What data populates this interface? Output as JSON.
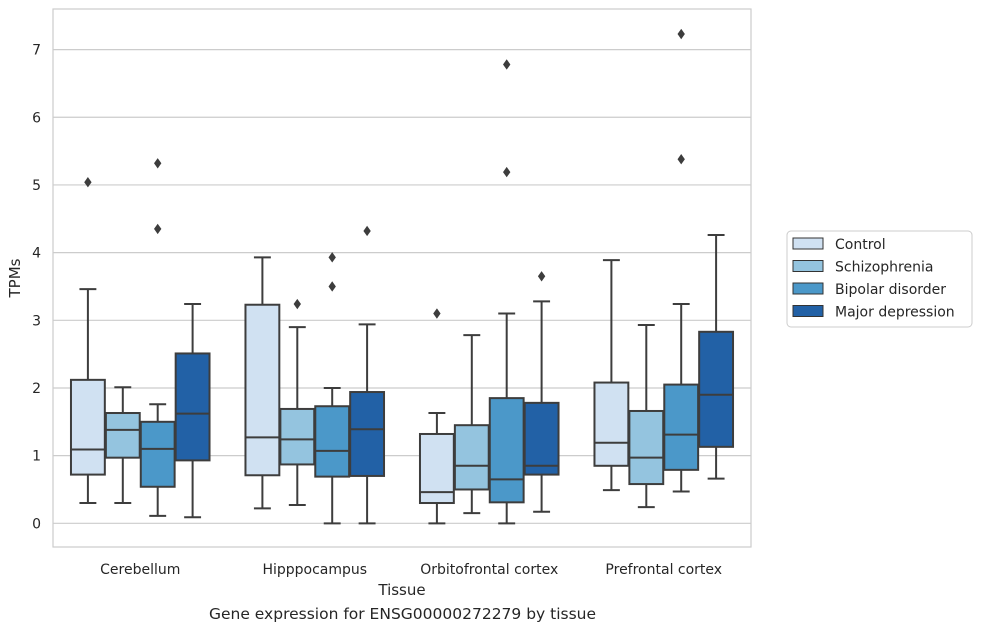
{
  "chart_data": {
    "type": "box",
    "xlabel": "Tissue",
    "ylabel": "TPMs",
    "ylim": [
      -0.35,
      7.6
    ],
    "yticks": [
      0,
      1,
      2,
      3,
      4,
      5,
      6,
      7
    ],
    "grid": true,
    "legend_position": "right",
    "categories": [
      "Cerebellum",
      "Hipppocampus",
      "Orbitofrontal cortex",
      "Prefrontal cortex"
    ],
    "series": [
      {
        "name": "Control",
        "color": "#d0e1f2",
        "boxes": [
          {
            "whislo": 0.3,
            "q1": 0.72,
            "med": 1.09,
            "q3": 2.12,
            "whishi": 3.46,
            "fliers": [
              5.04
            ]
          },
          {
            "whislo": 0.22,
            "q1": 0.71,
            "med": 1.27,
            "q3": 3.23,
            "whishi": 3.93,
            "fliers": []
          },
          {
            "whislo": 0.0,
            "q1": 0.3,
            "med": 0.46,
            "q3": 1.32,
            "whishi": 1.63,
            "fliers": [
              3.1
            ]
          },
          {
            "whislo": 0.49,
            "q1": 0.85,
            "med": 1.19,
            "q3": 2.08,
            "whishi": 3.89,
            "fliers": []
          }
        ]
      },
      {
        "name": "Schizophrenia",
        "color": "#94c4df",
        "boxes": [
          {
            "whislo": 0.3,
            "q1": 0.97,
            "med": 1.38,
            "q3": 1.63,
            "whishi": 2.01,
            "fliers": []
          },
          {
            "whislo": 0.27,
            "q1": 0.87,
            "med": 1.24,
            "q3": 1.69,
            "whishi": 2.9,
            "fliers": [
              3.24
            ]
          },
          {
            "whislo": 0.15,
            "q1": 0.5,
            "med": 0.85,
            "q3": 1.45,
            "whishi": 2.78,
            "fliers": []
          },
          {
            "whislo": 0.24,
            "q1": 0.58,
            "med": 0.97,
            "q3": 1.66,
            "whishi": 2.93,
            "fliers": []
          }
        ]
      },
      {
        "name": "Bipolar disorder",
        "color": "#4b98c9",
        "boxes": [
          {
            "whislo": 0.11,
            "q1": 0.54,
            "med": 1.1,
            "q3": 1.5,
            "whishi": 1.76,
            "fliers": [
              4.35,
              5.32
            ]
          },
          {
            "whislo": 0.0,
            "q1": 0.69,
            "med": 1.07,
            "q3": 1.73,
            "whishi": 2.0,
            "fliers": [
              3.5,
              3.93
            ]
          },
          {
            "whislo": 0.0,
            "q1": 0.31,
            "med": 0.65,
            "q3": 1.85,
            "whishi": 3.1,
            "fliers": [
              5.19,
              6.78
            ]
          },
          {
            "whislo": 0.47,
            "q1": 0.79,
            "med": 1.31,
            "q3": 2.05,
            "whishi": 3.24,
            "fliers": [
              5.38,
              7.23
            ]
          }
        ]
      },
      {
        "name": "Major depression",
        "color": "#2261a6",
        "boxes": [
          {
            "whislo": 0.09,
            "q1": 0.93,
            "med": 1.62,
            "q3": 2.51,
            "whishi": 3.24,
            "fliers": []
          },
          {
            "whislo": 0.0,
            "q1": 0.7,
            "med": 1.39,
            "q3": 1.94,
            "whishi": 2.94,
            "fliers": [
              4.32
            ]
          },
          {
            "whislo": 0.17,
            "q1": 0.72,
            "med": 0.85,
            "q3": 1.78,
            "whishi": 3.28,
            "fliers": [
              3.65
            ]
          },
          {
            "whislo": 0.66,
            "q1": 1.13,
            "med": 1.9,
            "q3": 2.83,
            "whishi": 4.26,
            "fliers": []
          }
        ]
      }
    ]
  },
  "caption": "Gene expression for ENSG00000272279 by tissue"
}
